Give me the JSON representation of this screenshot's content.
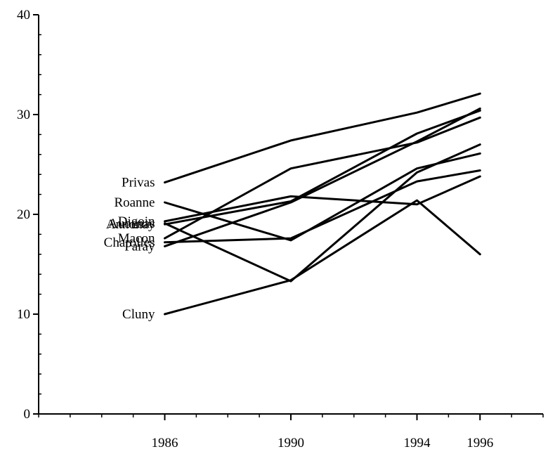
{
  "chart_data": {
    "type": "line",
    "title": "",
    "xlabel": "",
    "ylabel": "",
    "x": [
      1986,
      1990,
      1994,
      1996
    ],
    "xticks": [
      "1986",
      "1990",
      "1994",
      "1996"
    ],
    "xlim": [
      1982,
      1998
    ],
    "yticks": [
      "0",
      "10",
      "20",
      "30",
      "40"
    ],
    "ylim": [
      0,
      40
    ],
    "grid": false,
    "legend": "none",
    "series": [
      {
        "name": "Privas",
        "values": [
          23.2,
          27.4,
          30.2,
          32.1
        ]
      },
      {
        "name": "Roanne",
        "values": [
          21.2,
          17.4,
          24.6,
          26.1
        ]
      },
      {
        "name": "Digoin",
        "values": [
          19.3,
          21.8,
          21.0,
          23.8
        ]
      },
      {
        "name": "Aubenas",
        "values": [
          19.1,
          13.3,
          24.2,
          27.0
        ]
      },
      {
        "name": "Annonay",
        "values": [
          19.0,
          21.3,
          28.1,
          30.4
        ]
      },
      {
        "name": "Macon",
        "values": [
          17.6,
          24.6,
          27.2,
          29.7
        ]
      },
      {
        "name": "Charolles",
        "values": [
          17.2,
          17.6,
          23.3,
          24.4
        ]
      },
      {
        "name": "Paray",
        "values": [
          16.8,
          21.2,
          27.3,
          30.6
        ]
      },
      {
        "name": "Cluny",
        "values": [
          10.0,
          13.4,
          21.4,
          16.0
        ]
      }
    ]
  }
}
